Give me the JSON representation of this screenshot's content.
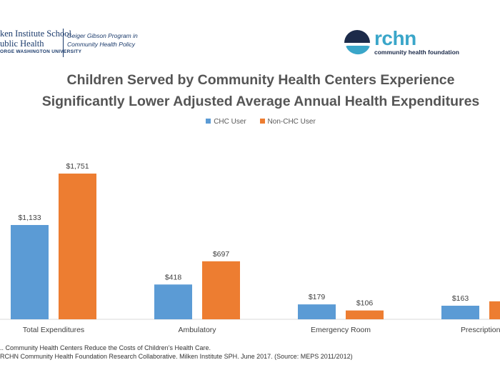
{
  "logos": {
    "left": {
      "institute_line1": "ken Institute School",
      "institute_line2": "ublic Health",
      "university": "ORGE WASHINGTON UNIVERSITY",
      "program_line1": "Geiger Gibson Program in",
      "program_line2": "Community Health Policy"
    },
    "right": {
      "wordmark": "rchn",
      "subtitle": "community health foundation"
    }
  },
  "colors": {
    "chc": "#5B9BD5",
    "non_chc": "#ED7D31"
  },
  "chart_data": {
    "type": "bar",
    "title": "Children Served by Community Health Centers Experience Significantly Lower Adjusted Average Annual Health Expenditures",
    "title_line1": "Children Served by Community Health Centers Experience",
    "title_line2": "Significantly Lower Adjusted Average Annual Health Expenditures",
    "categories": [
      "Total Expenditures",
      "Ambulatory",
      "Emergency Room",
      "Prescription D"
    ],
    "series": [
      {
        "name": "CHC User",
        "values": [
          1133,
          418,
          179,
          163
        ],
        "labels": [
          "$1,133",
          "$418",
          "$179",
          "$163"
        ]
      },
      {
        "name": "Non-CHC User",
        "values": [
          1751,
          697,
          106,
          216
        ],
        "labels": [
          "$1,751",
          "$697",
          "$106",
          ""
        ]
      }
    ],
    "ylim": [
      0,
      2000
    ],
    "xlabel": "",
    "ylabel": "",
    "legend_position": "top-center",
    "grid": false
  },
  "footnotes": {
    "line1": ".. Community Health Centers Reduce the Costs of Children’s Health Care.",
    "line2": "RCHN Community Health Foundation Research Collaborative. Milken Institute  SPH. June 2017.   (Source: MEPS 2011/2012)"
  }
}
